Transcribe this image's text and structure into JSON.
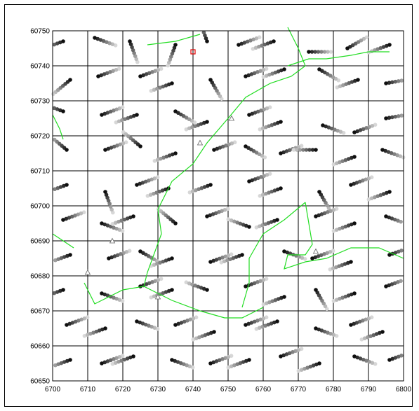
{
  "chart_data": {
    "type": "scatter",
    "title": "",
    "xlabel": "",
    "ylabel": "",
    "xlim": [
      6700,
      6800
    ],
    "ylim": [
      60650,
      60750
    ],
    "x_ticks": [
      "6700",
      "6710",
      "6720",
      "6730",
      "6740",
      "6750",
      "6760",
      "6770",
      "6780",
      "6790",
      "6800"
    ],
    "y_ticks": [
      "60750",
      "60740",
      "60730",
      "60720",
      "60710",
      "60700",
      "60690",
      "60680",
      "60670",
      "60660",
      "60650"
    ],
    "grid": true,
    "description_marks": "grid of short dot trails fading from light grey to black",
    "trail_points_per_track": 8,
    "trail_step": 0.9,
    "tracks": [
      {
        "x": 6703,
        "y": 60747,
        "dir": 200
      },
      {
        "x": 6712,
        "y": 60748,
        "dir": 340
      },
      {
        "x": 6722,
        "y": 60747,
        "dir": 290
      },
      {
        "x": 6735,
        "y": 60746,
        "dir": 250
      },
      {
        "x": 6744,
        "y": 60747,
        "dir": 110
      },
      {
        "x": 6753,
        "y": 60746,
        "dir": 20
      },
      {
        "x": 6763,
        "y": 60747,
        "dir": 200
      },
      {
        "x": 6773,
        "y": 60744,
        "dir": 0
      },
      {
        "x": 6784,
        "y": 60745,
        "dir": 30
      },
      {
        "x": 6796,
        "y": 60746,
        "dir": 200
      },
      {
        "x": 6705,
        "y": 60736,
        "dir": 220
      },
      {
        "x": 6713,
        "y": 60737,
        "dir": 20
      },
      {
        "x": 6725,
        "y": 60737,
        "dir": 20
      },
      {
        "x": 6734,
        "y": 60735,
        "dir": 200
      },
      {
        "x": 6745,
        "y": 60736,
        "dir": 300
      },
      {
        "x": 6755,
        "y": 60737,
        "dir": 20
      },
      {
        "x": 6766,
        "y": 60739,
        "dir": 200
      },
      {
        "x": 6776,
        "y": 60739,
        "dir": 330
      },
      {
        "x": 6787,
        "y": 60736,
        "dir": 200
      },
      {
        "x": 6795,
        "y": 60735,
        "dir": 10
      },
      {
        "x": 6703,
        "y": 60727,
        "dir": 160
      },
      {
        "x": 6714,
        "y": 60726,
        "dir": 20
      },
      {
        "x": 6724,
        "y": 60726,
        "dir": 200
      },
      {
        "x": 6735,
        "y": 60727,
        "dir": 330
      },
      {
        "x": 6744,
        "y": 60724,
        "dir": 200
      },
      {
        "x": 6756,
        "y": 60726,
        "dir": 20
      },
      {
        "x": 6765,
        "y": 60724,
        "dir": 200
      },
      {
        "x": 6777,
        "y": 60723,
        "dir": 340
      },
      {
        "x": 6786,
        "y": 60721,
        "dir": 20
      },
      {
        "x": 6795,
        "y": 60725,
        "dir": 10
      },
      {
        "x": 6704,
        "y": 60716,
        "dir": 140
      },
      {
        "x": 6715,
        "y": 60716,
        "dir": 20
      },
      {
        "x": 6725,
        "y": 60717,
        "dir": 140
      },
      {
        "x": 6735,
        "y": 60715,
        "dir": 200
      },
      {
        "x": 6746,
        "y": 60716,
        "dir": 20
      },
      {
        "x": 6755,
        "y": 60717,
        "dir": 330
      },
      {
        "x": 6765,
        "y": 60715,
        "dir": 20
      },
      {
        "x": 6775,
        "y": 60716,
        "dir": 180
      },
      {
        "x": 6786,
        "y": 60714,
        "dir": 200
      },
      {
        "x": 6794,
        "y": 60716,
        "dir": 340
      },
      {
        "x": 6704,
        "y": 60706,
        "dir": 200
      },
      {
        "x": 6715,
        "y": 60704,
        "dir": 290
      },
      {
        "x": 6724,
        "y": 60706,
        "dir": 20
      },
      {
        "x": 6733,
        "y": 60705,
        "dir": 200
      },
      {
        "x": 6745,
        "y": 60706,
        "dir": 200
      },
      {
        "x": 6756,
        "y": 60707,
        "dir": 20
      },
      {
        "x": 6765,
        "y": 60705,
        "dir": 200
      },
      {
        "x": 6776,
        "y": 60704,
        "dir": 300
      },
      {
        "x": 6785,
        "y": 60706,
        "dir": 20
      },
      {
        "x": 6796,
        "y": 60704,
        "dir": 200
      },
      {
        "x": 6703,
        "y": 60696,
        "dir": 20
      },
      {
        "x": 6714,
        "y": 60695,
        "dir": 340
      },
      {
        "x": 6723,
        "y": 60697,
        "dir": 200
      },
      {
        "x": 6735,
        "y": 60695,
        "dir": 140
      },
      {
        "x": 6744,
        "y": 60697,
        "dir": 20
      },
      {
        "x": 6756,
        "y": 60694,
        "dir": 160
      },
      {
        "x": 6764,
        "y": 60696,
        "dir": 200
      },
      {
        "x": 6775,
        "y": 60697,
        "dir": 20
      },
      {
        "x": 6786,
        "y": 60695,
        "dir": 200
      },
      {
        "x": 6795,
        "y": 60697,
        "dir": 340
      },
      {
        "x": 6705,
        "y": 60686,
        "dir": 200
      },
      {
        "x": 6716,
        "y": 60685,
        "dir": 20
      },
      {
        "x": 6725,
        "y": 60687,
        "dir": 330
      },
      {
        "x": 6734,
        "y": 60685,
        "dir": 200
      },
      {
        "x": 6745,
        "y": 60684,
        "dir": 20
      },
      {
        "x": 6754,
        "y": 60686,
        "dir": 200
      },
      {
        "x": 6766,
        "y": 60687,
        "dir": 340
      },
      {
        "x": 6774,
        "y": 60685,
        "dir": 20
      },
      {
        "x": 6785,
        "y": 60684,
        "dir": 200
      },
      {
        "x": 6796,
        "y": 60686,
        "dir": 20
      },
      {
        "x": 6703,
        "y": 60676,
        "dir": 200
      },
      {
        "x": 6714,
        "y": 60675,
        "dir": 340
      },
      {
        "x": 6725,
        "y": 60677,
        "dir": 20
      },
      {
        "x": 6734,
        "y": 60676,
        "dir": 200
      },
      {
        "x": 6744,
        "y": 60676,
        "dir": 160
      },
      {
        "x": 6755,
        "y": 60677,
        "dir": 20
      },
      {
        "x": 6766,
        "y": 60674,
        "dir": 200
      },
      {
        "x": 6775,
        "y": 60676,
        "dir": 300
      },
      {
        "x": 6786,
        "y": 60675,
        "dir": 200
      },
      {
        "x": 6795,
        "y": 60677,
        "dir": 20
      },
      {
        "x": 6704,
        "y": 60666,
        "dir": 20
      },
      {
        "x": 6715,
        "y": 60665,
        "dir": 200
      },
      {
        "x": 6724,
        "y": 60667,
        "dir": 340
      },
      {
        "x": 6735,
        "y": 60666,
        "dir": 20
      },
      {
        "x": 6746,
        "y": 60664,
        "dir": 200
      },
      {
        "x": 6755,
        "y": 60666,
        "dir": 20
      },
      {
        "x": 6764,
        "y": 60667,
        "dir": 200
      },
      {
        "x": 6775,
        "y": 60665,
        "dir": 340
      },
      {
        "x": 6785,
        "y": 60666,
        "dir": 20
      },
      {
        "x": 6794,
        "y": 60664,
        "dir": 200
      },
      {
        "x": 6705,
        "y": 60656,
        "dir": 200
      },
      {
        "x": 6714,
        "y": 60655,
        "dir": 20
      },
      {
        "x": 6723,
        "y": 60657,
        "dir": 200
      },
      {
        "x": 6734,
        "y": 60656,
        "dir": 340
      },
      {
        "x": 6745,
        "y": 60655,
        "dir": 20
      },
      {
        "x": 6756,
        "y": 60656,
        "dir": 200
      },
      {
        "x": 6765,
        "y": 60657,
        "dir": 20
      },
      {
        "x": 6776,
        "y": 60655,
        "dir": 200
      },
      {
        "x": 6786,
        "y": 60657,
        "dir": 340
      },
      {
        "x": 6796,
        "y": 60656,
        "dir": 20
      }
    ],
    "green_lines": [
      [
        [
          6700,
          60692
        ],
        [
          6703,
          60690
        ],
        [
          6706,
          60688
        ]
      ],
      [
        [
          6700,
          60726
        ],
        [
          6702,
          60722
        ],
        [
          6703,
          60719
        ]
      ],
      [
        [
          6727,
          60746
        ],
        [
          6735,
          60747
        ],
        [
          6742,
          60749
        ]
      ],
      [
        [
          6767,
          60751
        ],
        [
          6770,
          60745
        ],
        [
          6772,
          60740
        ],
        [
          6768,
          60737
        ],
        [
          6762,
          60735
        ],
        [
          6755,
          60731
        ],
        [
          6750,
          60725
        ],
        [
          6744,
          60718
        ],
        [
          6740,
          60712
        ],
        [
          6734,
          60707
        ],
        [
          6730,
          60699
        ],
        [
          6731,
          60692
        ],
        [
          6727,
          60681
        ],
        [
          6726,
          60677
        ],
        [
          6720,
          60676
        ],
        [
          6712,
          60672
        ],
        [
          6709,
          60678
        ]
      ],
      [
        [
          6767,
          60740
        ],
        [
          6773,
          60742
        ],
        [
          6778,
          60742
        ],
        [
          6785,
          60743
        ],
        [
          6790,
          60744
        ],
        [
          6796,
          60744
        ]
      ],
      [
        [
          6726,
          60677
        ],
        [
          6734,
          60673
        ],
        [
          6742,
          60670
        ],
        [
          6749,
          60668
        ],
        [
          6754,
          60668
        ],
        [
          6760,
          60671
        ]
      ],
      [
        [
          6772,
          60701
        ],
        [
          6766,
          60696
        ],
        [
          6760,
          60692
        ],
        [
          6756,
          60685
        ],
        [
          6756,
          60678
        ],
        [
          6754,
          60671
        ]
      ],
      [
        [
          6772,
          60701
        ],
        [
          6774,
          60689
        ],
        [
          6772,
          60686
        ],
        [
          6767,
          60686
        ],
        [
          6766,
          60682
        ],
        [
          6772,
          60684
        ],
        [
          6778,
          60685
        ],
        [
          6785,
          60688
        ],
        [
          6793,
          60688
        ],
        [
          6800,
          60685
        ]
      ]
    ],
    "triangles": [
      [
        6710,
        60681
      ],
      [
        6717,
        60690
      ],
      [
        6730,
        60674
      ],
      [
        6742,
        60718
      ],
      [
        6751,
        60725
      ],
      [
        6775,
        60687
      ]
    ],
    "red_square": [
      6740,
      60744
    ]
  }
}
